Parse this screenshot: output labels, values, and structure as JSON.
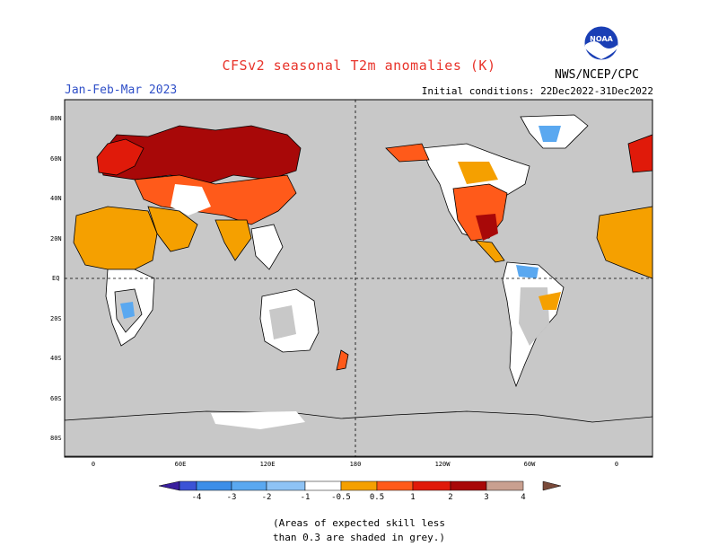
{
  "title": "CFSv2 seasonal T2m anomalies (K)",
  "period": "Jan-Feb-Mar 2023",
  "initial_conditions": "Initial conditions: 22Dec2022-31Dec2022",
  "organization": "NWS/NCEP/CPC",
  "logo_text": "NOAA",
  "lat_labels": [
    "80N",
    "60N",
    "40N",
    "20N",
    "EQ",
    "20S",
    "40S",
    "60S",
    "80S"
  ],
  "lon_labels": [
    "0",
    "60E",
    "120E",
    "180",
    "120W",
    "60W",
    "0"
  ],
  "legend": {
    "ticks": [
      "-4",
      "-3",
      "-2",
      "-1",
      "-0.5",
      "0.5",
      "1",
      "2",
      "3",
      "4"
    ],
    "colors": [
      "#3a1f9e",
      "#3b53d6",
      "#3c8ee8",
      "#5aa8f0",
      "#8ec3f5",
      "#ffffff",
      "#f5a000",
      "#ff5a1a",
      "#e01a0a",
      "#a80808",
      "#c9a090",
      "#7a4a3a"
    ]
  },
  "footnote": "(Areas of expected skill less\nthan 0.3 are shaded in grey.)",
  "colors": {
    "ocean_grey": "#c8c8c8",
    "title_red": "#e8332a",
    "period_blue": "#3050c8"
  }
}
